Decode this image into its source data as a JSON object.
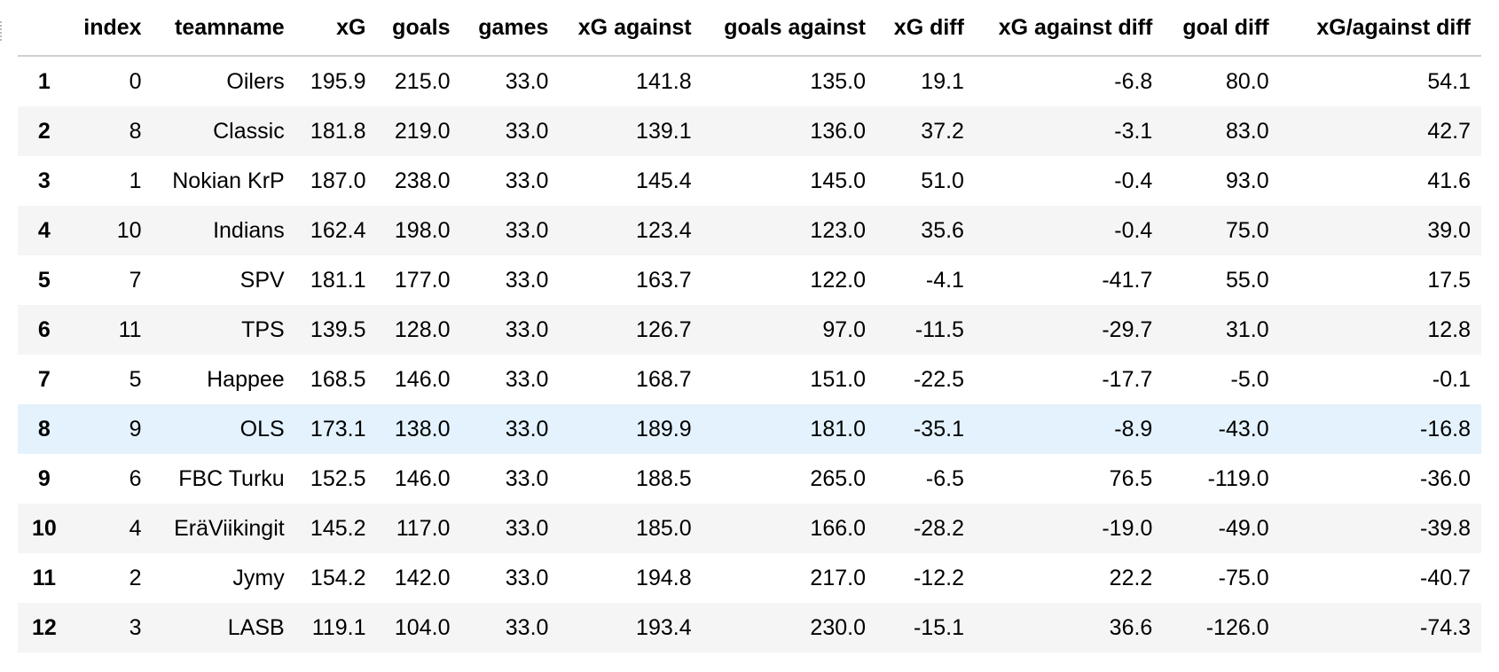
{
  "table": {
    "columns": [
      "",
      "index",
      "teamname",
      "xG",
      "goals",
      "games",
      "xG against",
      "goals against",
      "xG diff",
      "xG against diff",
      "goal diff",
      "xG/against diff"
    ],
    "hovered_row": 7,
    "rows": [
      [
        "1",
        "0",
        "Oilers",
        "195.9",
        "215.0",
        "33.0",
        "141.8",
        "135.0",
        "19.1",
        "-6.8",
        "80.0",
        "54.1"
      ],
      [
        "2",
        "8",
        "Classic",
        "181.8",
        "219.0",
        "33.0",
        "139.1",
        "136.0",
        "37.2",
        "-3.1",
        "83.0",
        "42.7"
      ],
      [
        "3",
        "1",
        "Nokian KrP",
        "187.0",
        "238.0",
        "33.0",
        "145.4",
        "145.0",
        "51.0",
        "-0.4",
        "93.0",
        "41.6"
      ],
      [
        "4",
        "10",
        "Indians",
        "162.4",
        "198.0",
        "33.0",
        "123.4",
        "123.0",
        "35.6",
        "-0.4",
        "75.0",
        "39.0"
      ],
      [
        "5",
        "7",
        "SPV",
        "181.1",
        "177.0",
        "33.0",
        "163.7",
        "122.0",
        "-4.1",
        "-41.7",
        "55.0",
        "17.5"
      ],
      [
        "6",
        "11",
        "TPS",
        "139.5",
        "128.0",
        "33.0",
        "126.7",
        "97.0",
        "-11.5",
        "-29.7",
        "31.0",
        "12.8"
      ],
      [
        "7",
        "5",
        "Happee",
        "168.5",
        "146.0",
        "33.0",
        "168.7",
        "151.0",
        "-22.5",
        "-17.7",
        "-5.0",
        "-0.1"
      ],
      [
        "8",
        "9",
        "OLS",
        "173.1",
        "138.0",
        "33.0",
        "189.9",
        "181.0",
        "-35.1",
        "-8.9",
        "-43.0",
        "-16.8"
      ],
      [
        "9",
        "6",
        "FBC Turku",
        "152.5",
        "146.0",
        "33.0",
        "188.5",
        "265.0",
        "-6.5",
        "76.5",
        "-119.0",
        "-36.0"
      ],
      [
        "10",
        "4",
        "EräViikingit",
        "145.2",
        "117.0",
        "33.0",
        "185.0",
        "166.0",
        "-28.2",
        "-19.0",
        "-49.0",
        "-39.8"
      ],
      [
        "11",
        "2",
        "Jymy",
        "154.2",
        "142.0",
        "33.0",
        "194.8",
        "217.0",
        "-12.2",
        "22.2",
        "-75.0",
        "-40.7"
      ],
      [
        "12",
        "3",
        "LASB",
        "119.1",
        "104.0",
        "33.0",
        "193.4",
        "230.0",
        "-15.1",
        "36.6",
        "-126.0",
        "-74.3"
      ]
    ]
  }
}
